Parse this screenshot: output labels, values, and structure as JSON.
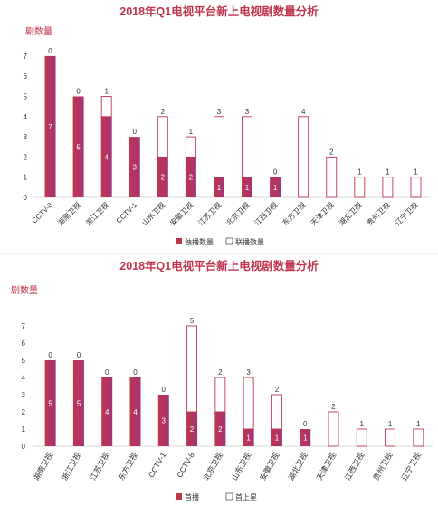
{
  "colors": {
    "bar_fill": "#c0354d",
    "bar_gradient_end": "#a3347a",
    "title": "#c0354d",
    "axis_text": "#333333",
    "inner_label": "#ffffff",
    "outline_label": "#c0354d",
    "grid": "#e5e5e5"
  },
  "chart_data": [
    {
      "type": "bar",
      "stacked": true,
      "title": "2018年Q1电视平台新上电视剧数量分析",
      "ylabel": "剧数量",
      "xlabel": "",
      "ylim": [
        0,
        7
      ],
      "yticks": [
        0,
        1,
        2,
        3,
        4,
        5,
        6,
        7
      ],
      "grid": false,
      "legend_position": "bottom-center",
      "categories": [
        "CCTV-8",
        "湖南卫视",
        "浙江卫视",
        "CCTV-1",
        "山东卫视",
        "安徽卫视",
        "江苏卫视",
        "北京卫视",
        "江西卫视",
        "东方卫视",
        "天津卫视",
        "湖北卫视",
        "贵州卫视",
        "辽宁卫视"
      ],
      "series": [
        {
          "name": "独播数量",
          "style": "solid",
          "values": [
            7,
            5,
            4,
            3,
            2,
            2,
            1,
            1,
            1,
            0,
            0,
            0,
            0,
            0
          ]
        },
        {
          "name": "联播数量",
          "style": "outline",
          "values": [
            0,
            0,
            1,
            0,
            2,
            1,
            3,
            3,
            0,
            4,
            2,
            1,
            1,
            1
          ]
        }
      ]
    },
    {
      "type": "bar",
      "stacked": true,
      "title": "2018年Q1电视平台新上电视剧数量分析",
      "ylabel": "剧数量",
      "xlabel": "",
      "ylim": [
        0,
        7
      ],
      "yticks": [
        0,
        1,
        2,
        3,
        4,
        5,
        6,
        7
      ],
      "grid": false,
      "legend_position": "bottom-center",
      "categories": [
        "湖南卫视",
        "浙江卫视",
        "江苏卫视",
        "东方卫视",
        "CCTV-1",
        "CCTV-8",
        "北京卫视",
        "山东卫视",
        "安徽卫视",
        "湖北卫视",
        "天津卫视",
        "江西卫视",
        "贵州卫视",
        "辽宁卫视"
      ],
      "series": [
        {
          "name": "首播",
          "style": "solid",
          "values": [
            5,
            5,
            4,
            4,
            3,
            2,
            2,
            1,
            1,
            1,
            0,
            0,
            0,
            0
          ]
        },
        {
          "name": "首上星",
          "style": "outline",
          "values": [
            0,
            0,
            0,
            0,
            0,
            5,
            2,
            3,
            2,
            0,
            2,
            1,
            1,
            1
          ]
        }
      ]
    }
  ]
}
